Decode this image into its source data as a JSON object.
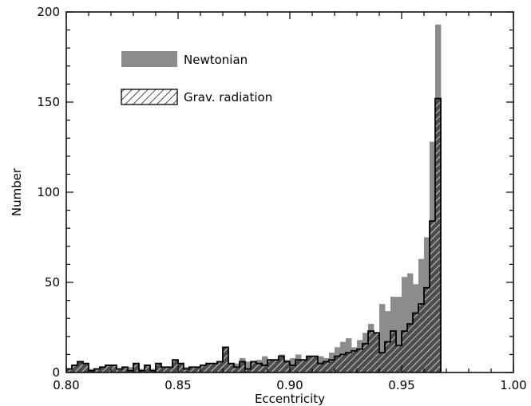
{
  "chart_data": {
    "type": "bar",
    "xlabel": "Eccentricity",
    "ylabel": "Number",
    "xlim": [
      0.8,
      1.0
    ],
    "ylim": [
      0,
      200
    ],
    "bin_width": 0.0025,
    "bin_start": 0.8,
    "x_ticks": [
      "0.80",
      "0.85",
      "0.90",
      "0.95",
      "1.00"
    ],
    "y_ticks": [
      "0",
      "50",
      "100",
      "150",
      "200"
    ],
    "legend_position": "top-left",
    "series": [
      {
        "name": "Newtonian",
        "style": "solid-gray",
        "color": "#8c8c8c",
        "values": [
          1,
          3,
          4,
          3,
          2,
          1,
          2,
          3,
          2,
          2,
          2,
          3,
          1,
          2,
          3,
          2,
          2,
          3,
          3,
          3,
          2,
          3,
          3,
          3,
          3,
          2,
          4,
          5,
          6,
          4,
          5,
          8,
          6,
          5,
          7,
          9,
          7,
          7,
          10,
          7,
          8,
          10,
          6,
          9,
          9,
          9,
          8,
          11,
          14,
          17,
          19,
          14,
          18,
          22,
          27,
          21,
          38,
          34,
          42,
          42,
          53,
          55,
          49,
          63,
          75,
          128,
          193
        ]
      },
      {
        "name": "Grav. radiation",
        "style": "hatched",
        "color": "#4d4d4d",
        "values": [
          2,
          4,
          6,
          5,
          1,
          2,
          3,
          4,
          4,
          2,
          3,
          1,
          5,
          1,
          4,
          1,
          5,
          3,
          3,
          7,
          5,
          2,
          3,
          3,
          4,
          5,
          5,
          6,
          14,
          5,
          3,
          6,
          2,
          6,
          5,
          4,
          7,
          7,
          9,
          6,
          4,
          7,
          7,
          9,
          9,
          5,
          6,
          7,
          9,
          10,
          11,
          12,
          13,
          16,
          23,
          22,
          11,
          17,
          23,
          15,
          23,
          27,
          33,
          38,
          47,
          84,
          152
        ]
      }
    ]
  }
}
